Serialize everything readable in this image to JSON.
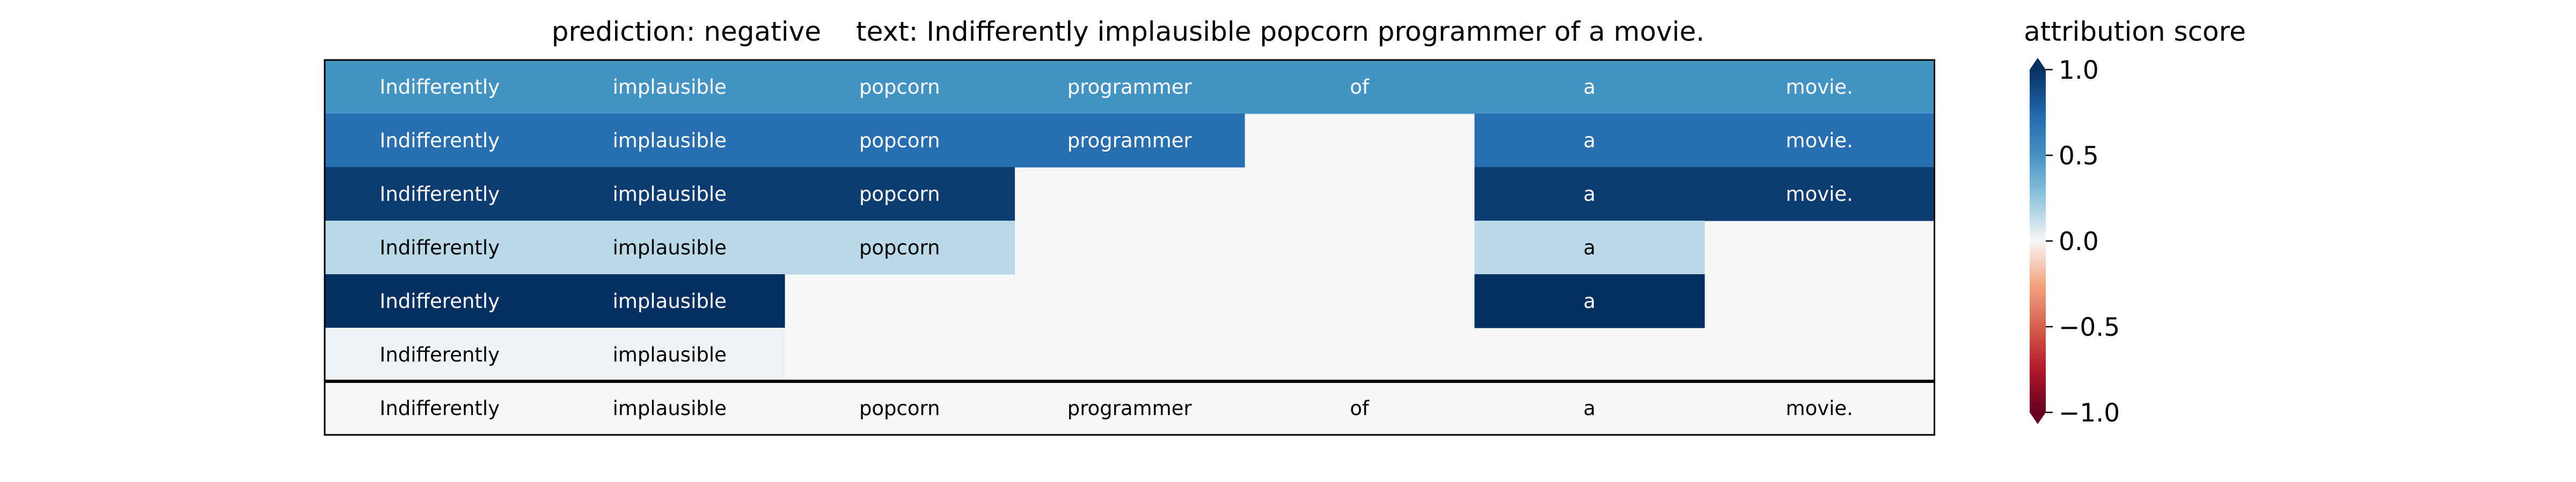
{
  "header": {
    "prediction_label": "prediction:  negative",
    "text_label": "text:  Indifferently implausible popcorn programmer of a movie.",
    "colorbar_title": "attribution score"
  },
  "chart_data": {
    "type": "heatmap",
    "tokens": [
      "Indifferently",
      "implausible",
      "popcorn",
      "programmer",
      "of",
      "a",
      "movie."
    ],
    "rows": [
      [
        0.5,
        0.5,
        0.5,
        0.5,
        0.5,
        0.5,
        0.5
      ],
      [
        0.7,
        0.7,
        0.7,
        0.7,
        null,
        0.7,
        0.7
      ],
      [
        0.95,
        0.95,
        0.95,
        null,
        null,
        0.95,
        0.95
      ],
      [
        0.15,
        0.15,
        0.15,
        null,
        null,
        0.15,
        null
      ],
      [
        1.0,
        1.0,
        null,
        null,
        null,
        1.0,
        null
      ],
      [
        0.02,
        0.02,
        null,
        null,
        null,
        null,
        null
      ]
    ],
    "baseline_row": [
      0,
      0,
      0,
      0,
      0,
      0,
      0
    ],
    "colormap": "RdBu",
    "vmin": -1.0,
    "vmax": 1.0,
    "colorbar_ticks": [
      "1.0",
      "0.5",
      "0.0",
      "−0.5",
      "−1.0"
    ],
    "colorbar_tick_values": [
      1.0,
      0.5,
      0.0,
      -0.5,
      -1.0
    ]
  }
}
